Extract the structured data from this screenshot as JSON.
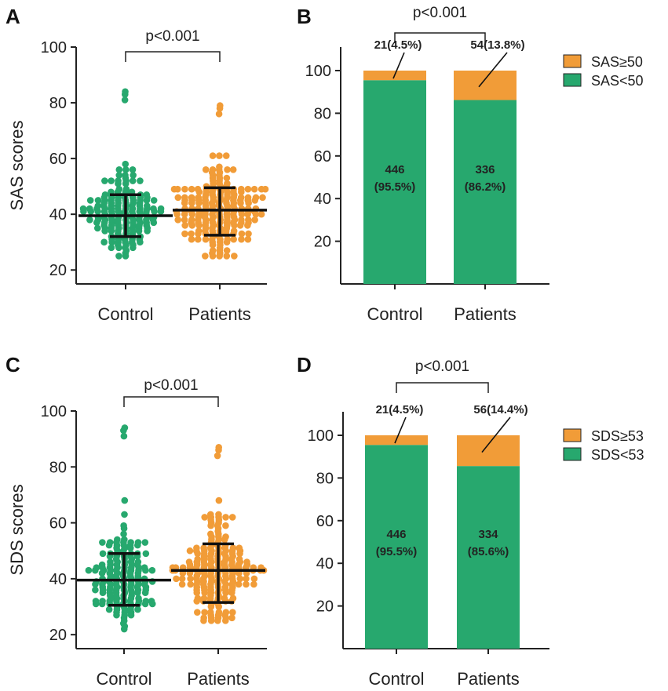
{
  "colors": {
    "control": "#27a86e",
    "patients": "#f19c38",
    "axis": "#222222"
  },
  "chart_data": [
    {
      "panel": "A",
      "type": "scatter",
      "ylabel": "SAS scores",
      "ylim": [
        15,
        100
      ],
      "yticks": [
        "20",
        "40",
        "60",
        "80",
        "100"
      ],
      "ytick_values": [
        20,
        40,
        60,
        80,
        100
      ],
      "categories": [
        "Control",
        "Patients"
      ],
      "significance": "p<0.001",
      "groups": [
        {
          "name": "Control",
          "mean": 39.5,
          "sd_low": 32,
          "sd_high": 47,
          "min": 25,
          "max": 84,
          "n_shown": 170
        },
        {
          "name": "Patients",
          "mean": 41.5,
          "sd_low": 32.5,
          "sd_high": 49.5,
          "min": 25,
          "max": 79,
          "n_shown": 210
        }
      ]
    },
    {
      "panel": "B",
      "type": "bar",
      "stacked": true,
      "ylim": [
        0,
        100
      ],
      "yticks": [
        "20",
        "40",
        "60",
        "80",
        "100"
      ],
      "ytick_values": [
        20,
        40,
        60,
        80,
        100
      ],
      "categories": [
        "Control",
        "Patients"
      ],
      "significance": "p<0.001",
      "series": [
        {
          "name": "SAS<50",
          "values": [
            95.5,
            86.2
          ],
          "labels": [
            "446",
            "336"
          ],
          "pct_labels": [
            "(95.5%)",
            "(86.2%)"
          ]
        },
        {
          "name": "SAS≥50",
          "values": [
            4.5,
            13.8
          ],
          "labels": [
            "21(4.5%)",
            "54(13.8%)"
          ]
        }
      ],
      "legend": [
        "SAS≥50",
        "SAS<50"
      ]
    },
    {
      "panel": "C",
      "type": "scatter",
      "ylabel": "SDS scores",
      "ylim": [
        15,
        100
      ],
      "yticks": [
        "20",
        "40",
        "60",
        "80",
        "100"
      ],
      "ytick_values": [
        20,
        40,
        60,
        80,
        100
      ],
      "categories": [
        "Control",
        "Patients"
      ],
      "significance": "p<0.001",
      "groups": [
        {
          "name": "Control",
          "mean": 39.5,
          "sd_low": 30.5,
          "sd_high": 49,
          "min": 22,
          "max": 94,
          "n_shown": 170
        },
        {
          "name": "Patients",
          "mean": 43,
          "sd_low": 31.5,
          "sd_high": 52.5,
          "min": 25,
          "max": 87,
          "n_shown": 210
        }
      ]
    },
    {
      "panel": "D",
      "type": "bar",
      "stacked": true,
      "ylim": [
        0,
        100
      ],
      "yticks": [
        "20",
        "40",
        "60",
        "80",
        "100"
      ],
      "ytick_values": [
        20,
        40,
        60,
        80,
        100
      ],
      "categories": [
        "Control",
        "Patients"
      ],
      "significance": "p<0.001",
      "series": [
        {
          "name": "SDS<53",
          "values": [
            95.5,
            85.6
          ],
          "labels": [
            "446",
            "334"
          ],
          "pct_labels": [
            "(95.5%)",
            "(85.6%)"
          ]
        },
        {
          "name": "SDS≥53",
          "values": [
            4.5,
            14.4
          ],
          "labels": [
            "21(4.5%)",
            "56(14.4%)"
          ]
        }
      ],
      "legend": [
        "SDS≥53",
        "SDS<53"
      ]
    }
  ]
}
